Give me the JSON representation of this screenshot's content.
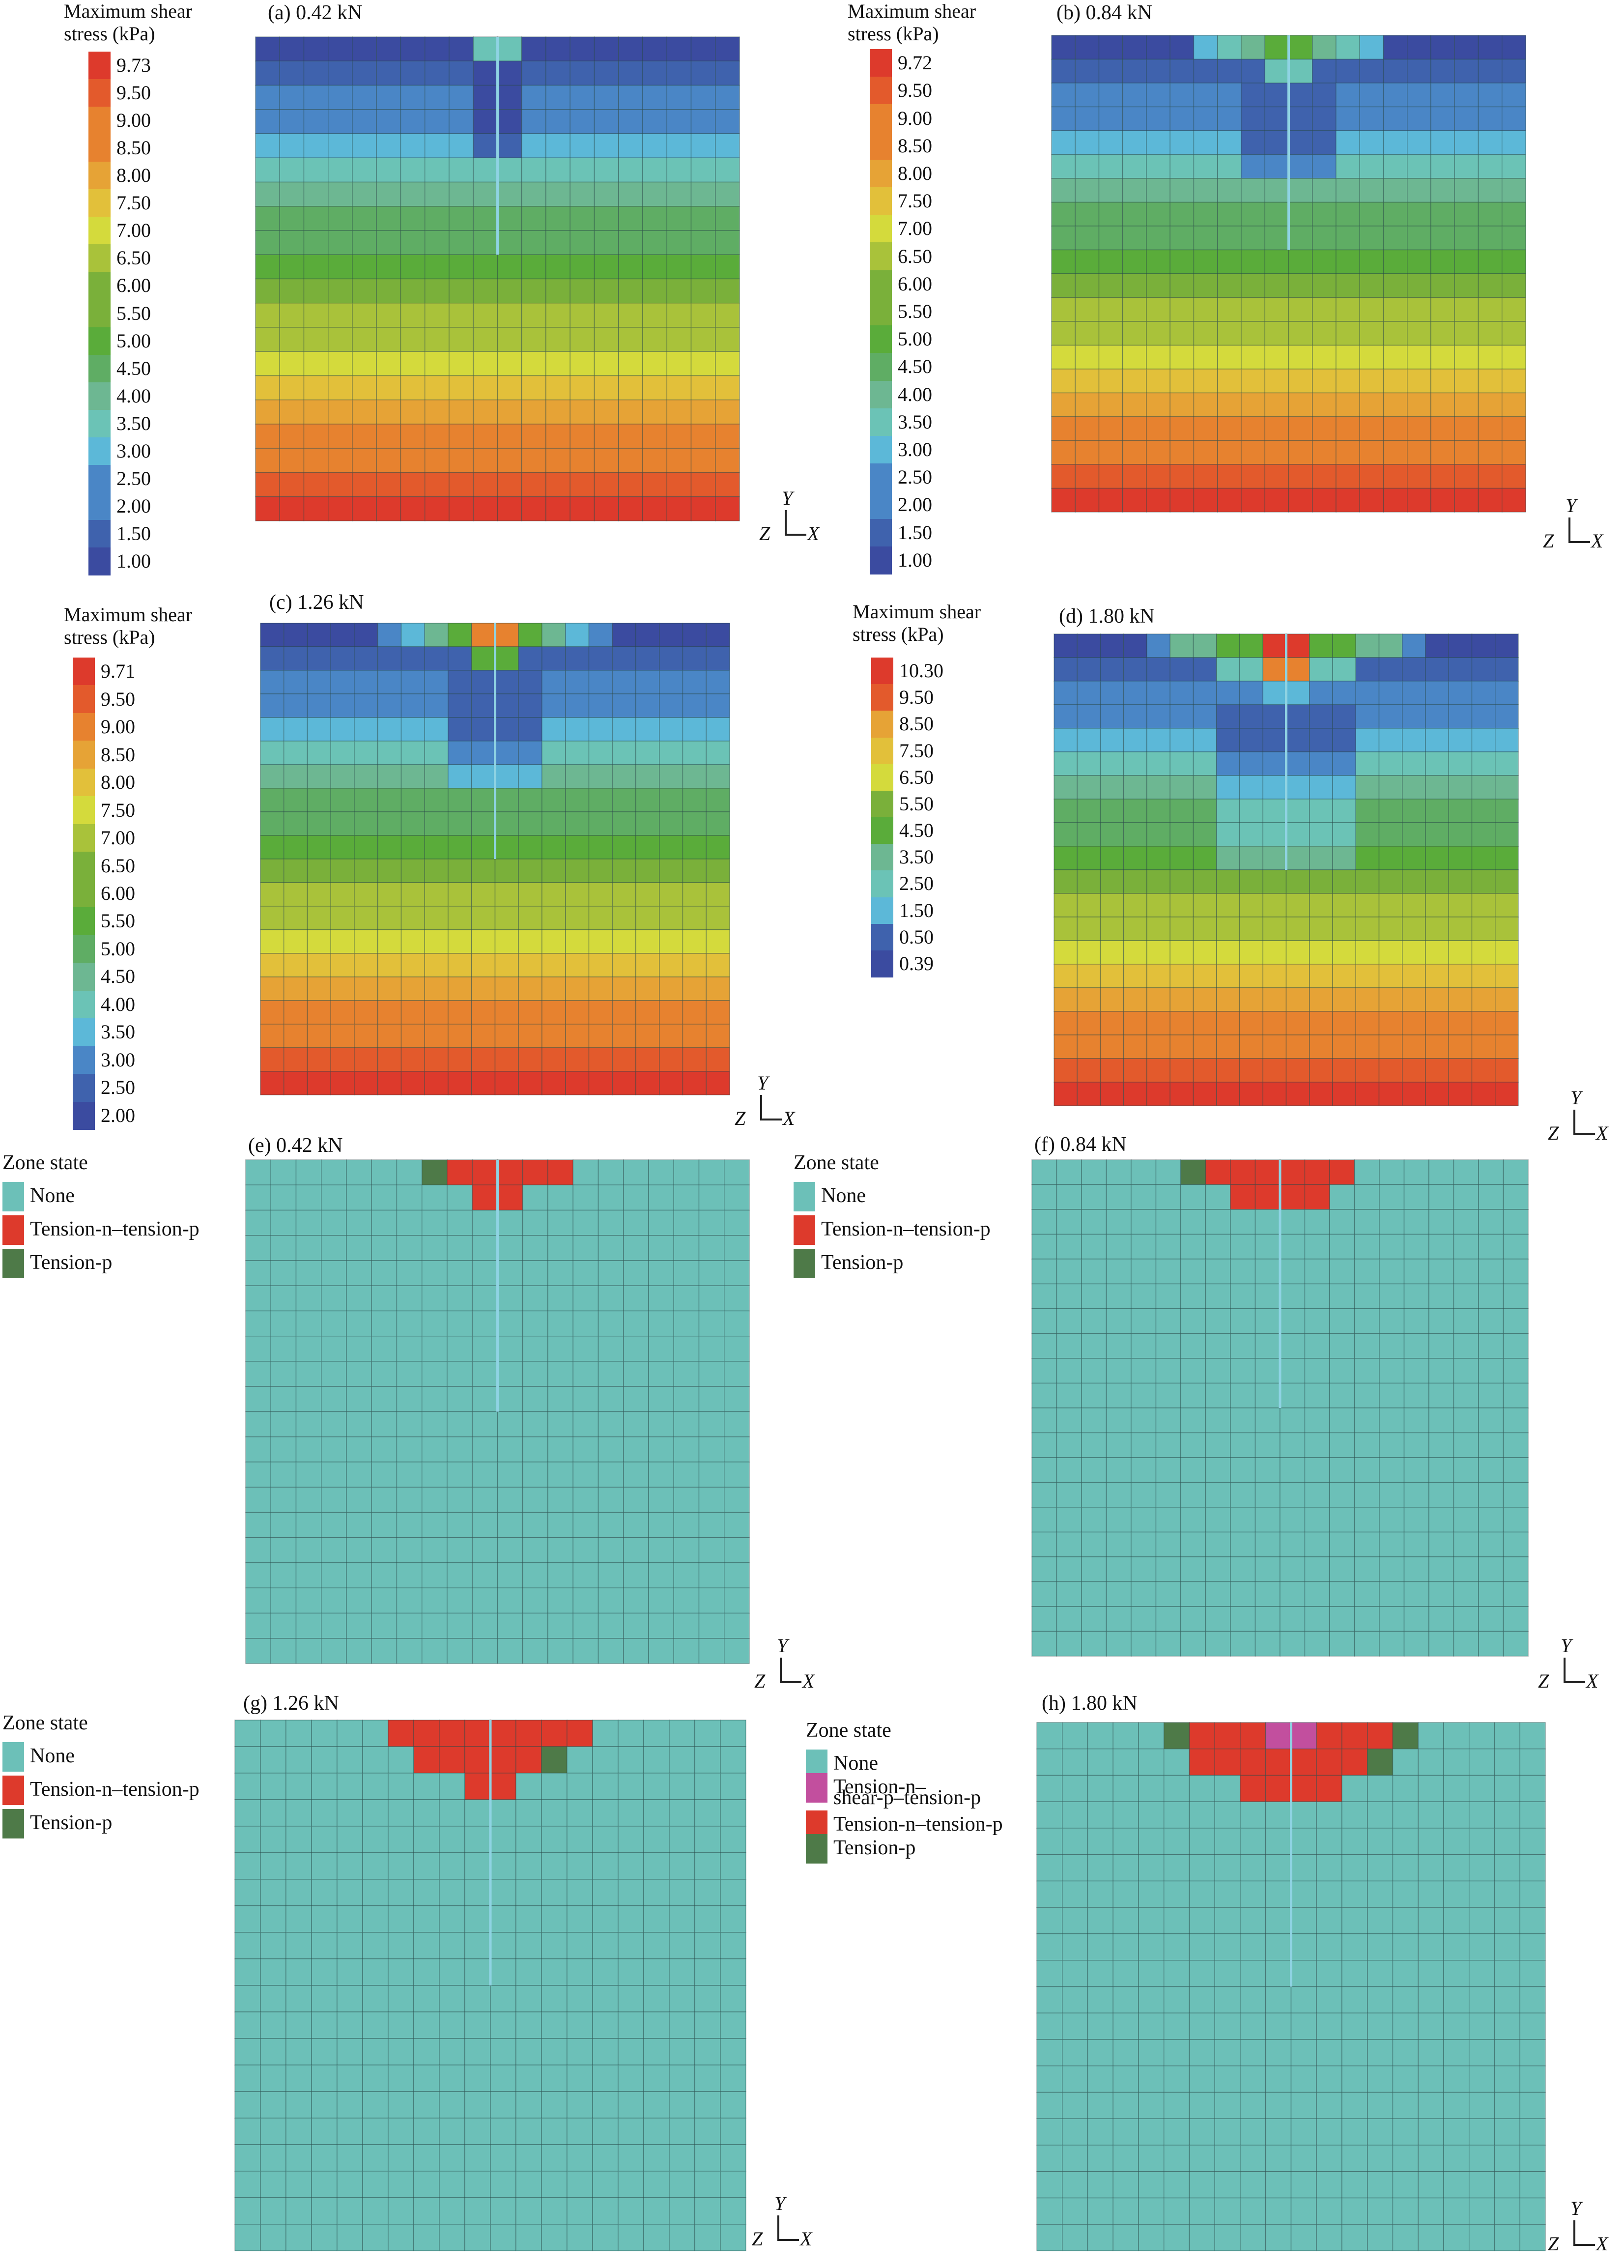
{
  "colorscale": [
    "#3b4ba0",
    "#3f62ad",
    "#4a86c6",
    "#5cb8d8",
    "#6bc3b6",
    "#6db792",
    "#5fad64",
    "#5aac3a",
    "#7ab03a",
    "#a9c23a",
    "#d4da3c",
    "#e2c03a",
    "#e6a336",
    "#e7822f",
    "#e35a2c",
    "#dd3a2c"
  ],
  "zone_colors": {
    "none": "#6cc0b8",
    "tnt": "#dd3a2c",
    "tp": "#4e7a48",
    "tnstp": "#c24f9e"
  },
  "stress_title": [
    "Maximum shear",
    "stress (kPa)"
  ],
  "zone_title": "Zone state",
  "axes": {
    "y": "Y",
    "z": "Z",
    "x": "X"
  },
  "stress_panels": [
    {
      "label": "(a) 0.42 kN",
      "ticks": [
        "9.73",
        "9.50",
        "9.00",
        "8.50",
        "8.00",
        "7.50",
        "7.00",
        "6.50",
        "6.00",
        "5.50",
        "5.00",
        "4.50",
        "4.00",
        "3.50",
        "3.00",
        "2.50",
        "2.00",
        "1.50",
        "1.00"
      ]
    },
    {
      "label": "(b) 0.84 kN",
      "ticks": [
        "9.72",
        "9.50",
        "9.00",
        "8.50",
        "8.00",
        "7.50",
        "7.00",
        "6.50",
        "6.00",
        "5.50",
        "5.00",
        "4.50",
        "4.00",
        "3.50",
        "3.00",
        "2.50",
        "2.00",
        "1.50",
        "1.00"
      ]
    },
    {
      "label": "(c) 1.26 kN",
      "ticks": [
        "9.71",
        "9.50",
        "9.00",
        "8.50",
        "8.00",
        "7.50",
        "7.00",
        "6.50",
        "6.00",
        "5.50",
        "5.00",
        "4.50",
        "4.00",
        "3.50",
        "3.00",
        "2.50",
        "2.00"
      ]
    },
    {
      "label": "(d) 1.80 kN",
      "ticks": [
        "10.30",
        "9.50",
        "8.50",
        "7.50",
        "6.50",
        "5.50",
        "4.50",
        "3.50",
        "2.50",
        "1.50",
        "0.50",
        "0.39"
      ]
    }
  ],
  "zone_panels": [
    {
      "label": "(e) 0.42 kN",
      "legend": [
        "None",
        "Tension-n–tension-p",
        "Tension-p"
      ]
    },
    {
      "label": "(f) 0.84 kN",
      "legend": [
        "None",
        "Tension-n–tension-p",
        "Tension-p"
      ]
    },
    {
      "label": "(g) 1.26 kN",
      "legend": [
        "None",
        "Tension-n–tension-p",
        "Tension-p"
      ]
    },
    {
      "label": "(h) 1.80 kN",
      "legend": [
        "None",
        "Tension-n–",
        "shear-p–tension-p",
        "Tension-n–tension-p",
        "Tension-p"
      ]
    }
  ]
}
